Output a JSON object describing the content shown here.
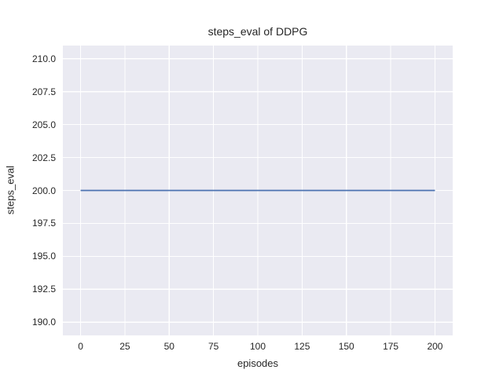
{
  "chart_data": {
    "type": "line",
    "title": "steps_eval of DDPG",
    "xlabel": "episodes",
    "ylabel": "steps_eval",
    "xlim": [
      -10,
      210
    ],
    "ylim": [
      189,
      211
    ],
    "xticks": {
      "values": [
        0,
        25,
        50,
        75,
        100,
        125,
        150,
        175,
        200
      ],
      "labels": [
        "0",
        "25",
        "50",
        "75",
        "100",
        "125",
        "150",
        "175",
        "200"
      ]
    },
    "yticks": {
      "values": [
        190.0,
        192.5,
        195.0,
        197.5,
        200.0,
        202.5,
        205.0,
        207.5,
        210.0
      ],
      "labels": [
        "190.0",
        "192.5",
        "195.0",
        "197.5",
        "200.0",
        "202.5",
        "205.0",
        "207.5",
        "210.0"
      ]
    },
    "grid": true,
    "legend_position": "none",
    "series": [
      {
        "name": "steps_eval",
        "x": [
          0,
          200
        ],
        "y": [
          200,
          200
        ],
        "color": "#4c72b0",
        "linewidth": 1.8
      }
    ],
    "colors": {
      "figure_background": "#ffffff",
      "plot_background": "#eaeaf2",
      "gridline": "#ffffff",
      "text": "#262626"
    }
  }
}
